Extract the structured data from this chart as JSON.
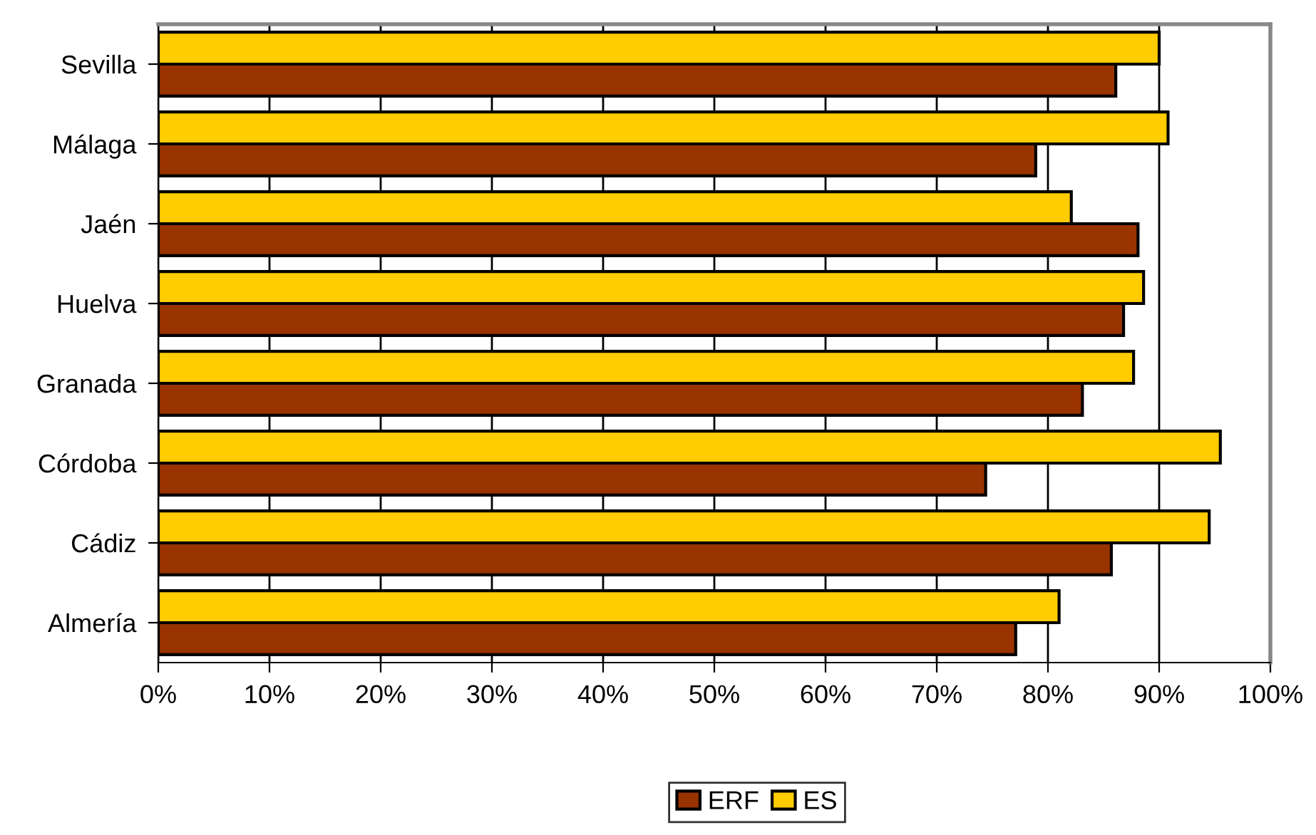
{
  "chart_data": {
    "type": "bar",
    "orientation": "horizontal",
    "categories": [
      "Sevilla",
      "Málaga",
      "Jaén",
      "Huelva",
      "Granada",
      "Córdoba",
      "Cádiz",
      "Almería"
    ],
    "series": [
      {
        "name": "ERF",
        "color": "#993300",
        "values": [
          86.1,
          78.9,
          88.1,
          86.8,
          83.1,
          74.4,
          85.7,
          77.1
        ]
      },
      {
        "name": "ES",
        "color": "#ffcc00",
        "values": [
          90.0,
          90.8,
          82.1,
          88.6,
          87.7,
          95.5,
          94.5,
          81.0
        ]
      }
    ],
    "xlim": [
      0,
      100
    ],
    "xticks": [
      {
        "value": 0,
        "label": "0%"
      },
      {
        "value": 10,
        "label": "10%"
      },
      {
        "value": 20,
        "label": "20%"
      },
      {
        "value": 30,
        "label": "30%"
      },
      {
        "value": 40,
        "label": "40%"
      },
      {
        "value": 50,
        "label": "50%"
      },
      {
        "value": 60,
        "label": "60%"
      },
      {
        "value": 70,
        "label": "70%"
      },
      {
        "value": 80,
        "label": "80%"
      },
      {
        "value": 90,
        "label": "90%"
      },
      {
        "value": 100,
        "label": "100%"
      }
    ],
    "grid": "x",
    "legend": "bottom"
  }
}
